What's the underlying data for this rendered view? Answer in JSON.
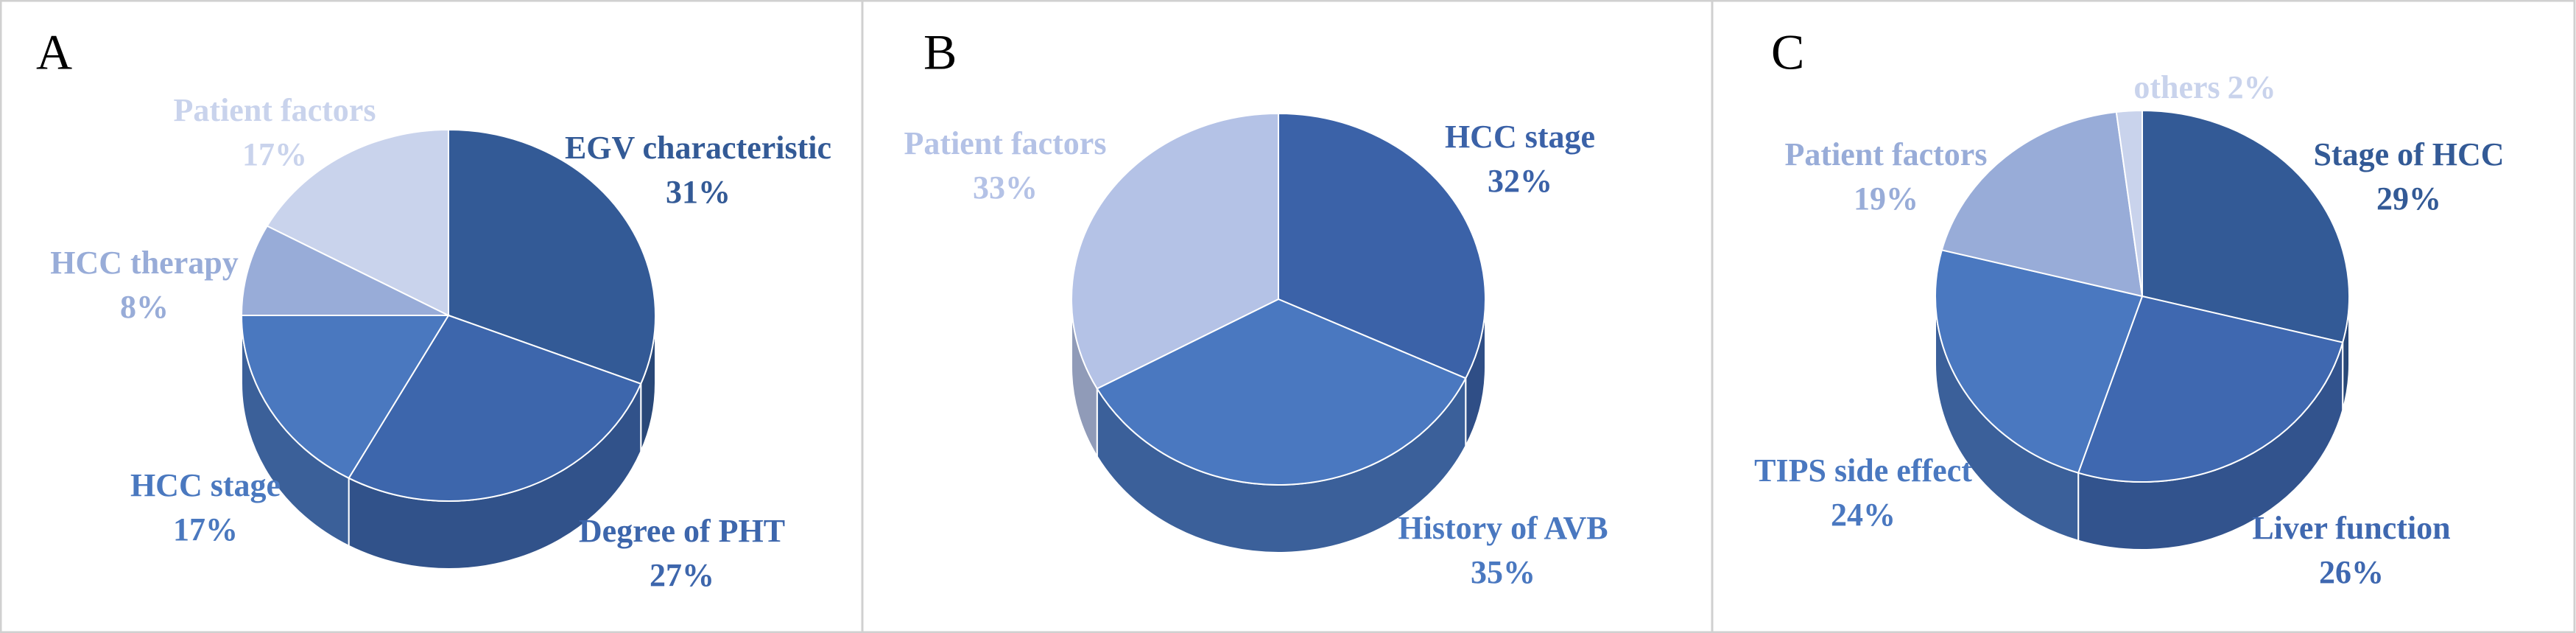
{
  "chart_data": [
    {
      "type": "pie",
      "label": "A",
      "categories": [
        "EGV characteristic",
        "Degree of PHT",
        "HCC stage",
        "HCC therapy",
        "Patient factors"
      ],
      "values": [
        31,
        27,
        17,
        8,
        17
      ],
      "value_labels": [
        "31%",
        "27%",
        "17%",
        "8%",
        "17%"
      ],
      "colors": [
        "#335a96",
        "#3d66ac",
        "#4a78bf",
        "#98acd8",
        "#c9d3ec"
      ]
    },
    {
      "type": "pie",
      "label": "B",
      "categories": [
        "HCC stage",
        "History of AVB",
        "Patient factors"
      ],
      "values": [
        32,
        35,
        33
      ],
      "value_labels": [
        "32%",
        "35%",
        "33%"
      ],
      "colors": [
        "#3b62a8",
        "#4a78c0",
        "#b4c2e6"
      ]
    },
    {
      "type": "pie",
      "label": "C",
      "categories": [
        "Stage of HCC",
        "Liver function",
        "TIPS side effect",
        "Patient factors",
        "others"
      ],
      "values": [
        29,
        26,
        24,
        19,
        2
      ],
      "value_labels": [
        "29%",
        "26%",
        "24%",
        "19%",
        "2%"
      ],
      "colors": [
        "#335a96",
        "#3f68b0",
        "#4a78c0",
        "#98acd8",
        "#c9d3ec"
      ]
    }
  ]
}
